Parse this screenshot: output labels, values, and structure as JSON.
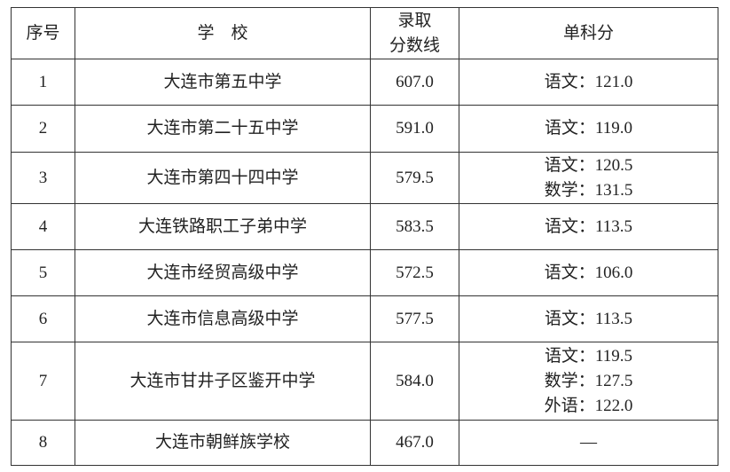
{
  "table": {
    "headers": [
      "序号",
      "学　校",
      "录取\n分数线",
      "单科分"
    ],
    "header_cutoff_lines": [
      "录取",
      "分数线"
    ],
    "rows": [
      {
        "no": "1",
        "school": "大连市第五中学",
        "score": "607.0",
        "subjects": [
          "语文：121.0"
        ]
      },
      {
        "no": "2",
        "school": "大连市第二十五中学",
        "score": "591.0",
        "subjects": [
          "语文：119.0"
        ]
      },
      {
        "no": "3",
        "school": "大连市第四十四中学",
        "score": "579.5",
        "subjects": [
          "语文：120.5",
          "数学：131.5"
        ]
      },
      {
        "no": "4",
        "school": "大连铁路职工子弟中学",
        "score": "583.5",
        "subjects": [
          "语文：113.5"
        ]
      },
      {
        "no": "5",
        "school": "大连市经贸高级中学",
        "score": "572.5",
        "subjects": [
          "语文：106.0"
        ]
      },
      {
        "no": "6",
        "school": "大连市信息高级中学",
        "score": "577.5",
        "subjects": [
          "语文：113.5"
        ]
      },
      {
        "no": "7",
        "school": "大连市甘井子区鉴开中学",
        "score": "584.0",
        "subjects": [
          "语文：119.5",
          "数学：127.5",
          "外语：122.0"
        ]
      },
      {
        "no": "8",
        "school": "大连市朝鲜族学校",
        "score": "467.0",
        "subjects": [
          "—"
        ]
      }
    ]
  }
}
